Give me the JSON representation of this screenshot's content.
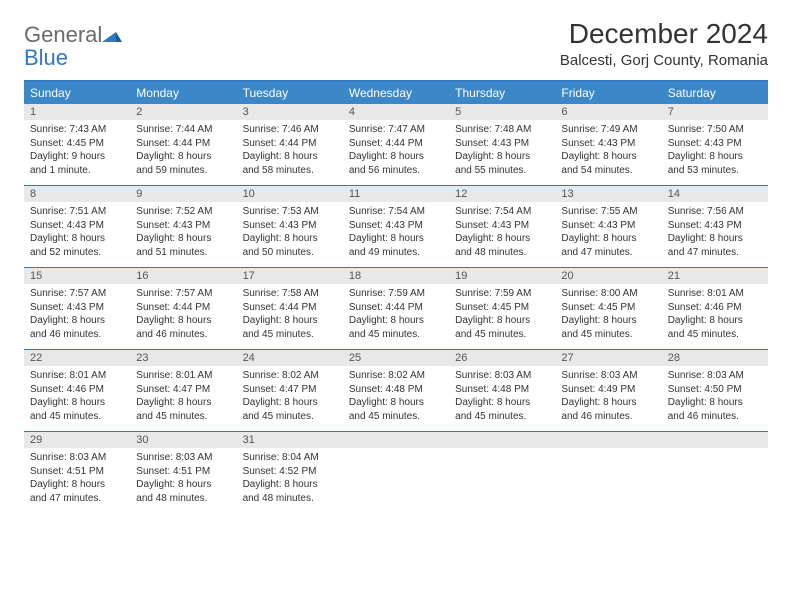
{
  "brand": {
    "general": "General",
    "blue": "Blue"
  },
  "title": "December 2024",
  "location": "Balcesti, Gorj County, Romania",
  "colors": {
    "header_bg": "#3b87c8",
    "header_text": "#ffffff",
    "rule": "#2f78c2",
    "daynum_bg": "#e8e8e8",
    "text": "#333333",
    "logo_gray": "#6b6b6b",
    "logo_blue": "#2f78c2",
    "page_bg": "#ffffff"
  },
  "day_names": [
    "Sunday",
    "Monday",
    "Tuesday",
    "Wednesday",
    "Thursday",
    "Friday",
    "Saturday"
  ],
  "weeks": [
    [
      {
        "n": "1",
        "sunrise": "Sunrise: 7:43 AM",
        "sunset": "Sunset: 4:45 PM",
        "daylight": "Daylight: 9 hours and 1 minute."
      },
      {
        "n": "2",
        "sunrise": "Sunrise: 7:44 AM",
        "sunset": "Sunset: 4:44 PM",
        "daylight": "Daylight: 8 hours and 59 minutes."
      },
      {
        "n": "3",
        "sunrise": "Sunrise: 7:46 AM",
        "sunset": "Sunset: 4:44 PM",
        "daylight": "Daylight: 8 hours and 58 minutes."
      },
      {
        "n": "4",
        "sunrise": "Sunrise: 7:47 AM",
        "sunset": "Sunset: 4:44 PM",
        "daylight": "Daylight: 8 hours and 56 minutes."
      },
      {
        "n": "5",
        "sunrise": "Sunrise: 7:48 AM",
        "sunset": "Sunset: 4:43 PM",
        "daylight": "Daylight: 8 hours and 55 minutes."
      },
      {
        "n": "6",
        "sunrise": "Sunrise: 7:49 AM",
        "sunset": "Sunset: 4:43 PM",
        "daylight": "Daylight: 8 hours and 54 minutes."
      },
      {
        "n": "7",
        "sunrise": "Sunrise: 7:50 AM",
        "sunset": "Sunset: 4:43 PM",
        "daylight": "Daylight: 8 hours and 53 minutes."
      }
    ],
    [
      {
        "n": "8",
        "sunrise": "Sunrise: 7:51 AM",
        "sunset": "Sunset: 4:43 PM",
        "daylight": "Daylight: 8 hours and 52 minutes."
      },
      {
        "n": "9",
        "sunrise": "Sunrise: 7:52 AM",
        "sunset": "Sunset: 4:43 PM",
        "daylight": "Daylight: 8 hours and 51 minutes."
      },
      {
        "n": "10",
        "sunrise": "Sunrise: 7:53 AM",
        "sunset": "Sunset: 4:43 PM",
        "daylight": "Daylight: 8 hours and 50 minutes."
      },
      {
        "n": "11",
        "sunrise": "Sunrise: 7:54 AM",
        "sunset": "Sunset: 4:43 PM",
        "daylight": "Daylight: 8 hours and 49 minutes."
      },
      {
        "n": "12",
        "sunrise": "Sunrise: 7:54 AM",
        "sunset": "Sunset: 4:43 PM",
        "daylight": "Daylight: 8 hours and 48 minutes."
      },
      {
        "n": "13",
        "sunrise": "Sunrise: 7:55 AM",
        "sunset": "Sunset: 4:43 PM",
        "daylight": "Daylight: 8 hours and 47 minutes."
      },
      {
        "n": "14",
        "sunrise": "Sunrise: 7:56 AM",
        "sunset": "Sunset: 4:43 PM",
        "daylight": "Daylight: 8 hours and 47 minutes."
      }
    ],
    [
      {
        "n": "15",
        "sunrise": "Sunrise: 7:57 AM",
        "sunset": "Sunset: 4:43 PM",
        "daylight": "Daylight: 8 hours and 46 minutes."
      },
      {
        "n": "16",
        "sunrise": "Sunrise: 7:57 AM",
        "sunset": "Sunset: 4:44 PM",
        "daylight": "Daylight: 8 hours and 46 minutes."
      },
      {
        "n": "17",
        "sunrise": "Sunrise: 7:58 AM",
        "sunset": "Sunset: 4:44 PM",
        "daylight": "Daylight: 8 hours and 45 minutes."
      },
      {
        "n": "18",
        "sunrise": "Sunrise: 7:59 AM",
        "sunset": "Sunset: 4:44 PM",
        "daylight": "Daylight: 8 hours and 45 minutes."
      },
      {
        "n": "19",
        "sunrise": "Sunrise: 7:59 AM",
        "sunset": "Sunset: 4:45 PM",
        "daylight": "Daylight: 8 hours and 45 minutes."
      },
      {
        "n": "20",
        "sunrise": "Sunrise: 8:00 AM",
        "sunset": "Sunset: 4:45 PM",
        "daylight": "Daylight: 8 hours and 45 minutes."
      },
      {
        "n": "21",
        "sunrise": "Sunrise: 8:01 AM",
        "sunset": "Sunset: 4:46 PM",
        "daylight": "Daylight: 8 hours and 45 minutes."
      }
    ],
    [
      {
        "n": "22",
        "sunrise": "Sunrise: 8:01 AM",
        "sunset": "Sunset: 4:46 PM",
        "daylight": "Daylight: 8 hours and 45 minutes."
      },
      {
        "n": "23",
        "sunrise": "Sunrise: 8:01 AM",
        "sunset": "Sunset: 4:47 PM",
        "daylight": "Daylight: 8 hours and 45 minutes."
      },
      {
        "n": "24",
        "sunrise": "Sunrise: 8:02 AM",
        "sunset": "Sunset: 4:47 PM",
        "daylight": "Daylight: 8 hours and 45 minutes."
      },
      {
        "n": "25",
        "sunrise": "Sunrise: 8:02 AM",
        "sunset": "Sunset: 4:48 PM",
        "daylight": "Daylight: 8 hours and 45 minutes."
      },
      {
        "n": "26",
        "sunrise": "Sunrise: 8:03 AM",
        "sunset": "Sunset: 4:48 PM",
        "daylight": "Daylight: 8 hours and 45 minutes."
      },
      {
        "n": "27",
        "sunrise": "Sunrise: 8:03 AM",
        "sunset": "Sunset: 4:49 PM",
        "daylight": "Daylight: 8 hours and 46 minutes."
      },
      {
        "n": "28",
        "sunrise": "Sunrise: 8:03 AM",
        "sunset": "Sunset: 4:50 PM",
        "daylight": "Daylight: 8 hours and 46 minutes."
      }
    ],
    [
      {
        "n": "29",
        "sunrise": "Sunrise: 8:03 AM",
        "sunset": "Sunset: 4:51 PM",
        "daylight": "Daylight: 8 hours and 47 minutes."
      },
      {
        "n": "30",
        "sunrise": "Sunrise: 8:03 AM",
        "sunset": "Sunset: 4:51 PM",
        "daylight": "Daylight: 8 hours and 48 minutes."
      },
      {
        "n": "31",
        "sunrise": "Sunrise: 8:04 AM",
        "sunset": "Sunset: 4:52 PM",
        "daylight": "Daylight: 8 hours and 48 minutes."
      },
      null,
      null,
      null,
      null
    ]
  ]
}
